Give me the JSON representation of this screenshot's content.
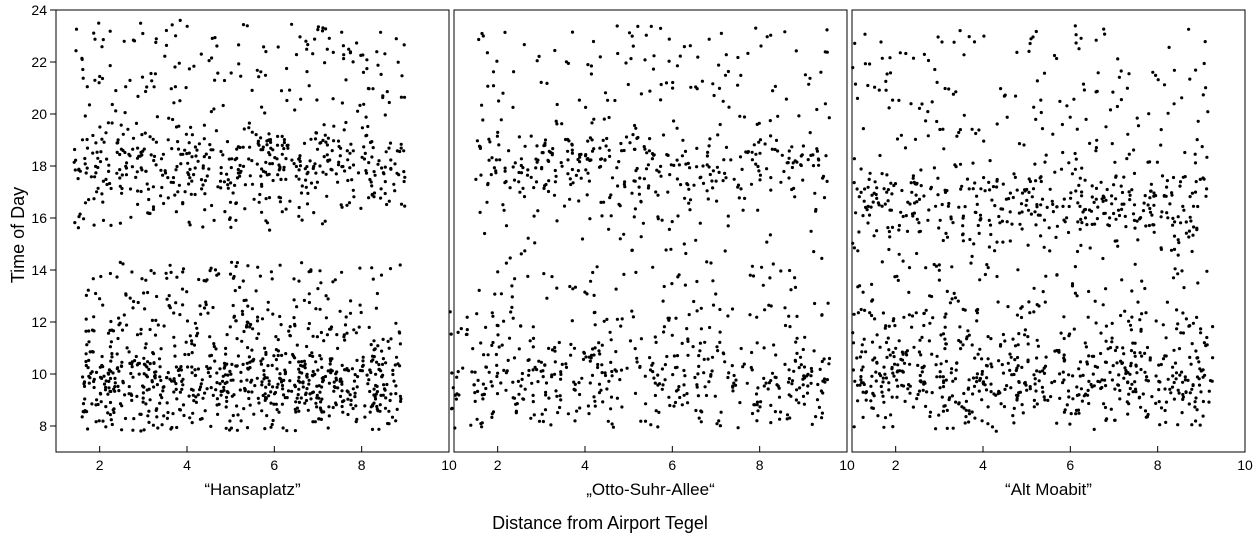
{
  "chart_data": {
    "type": "scatter",
    "xlabel": "Distance from Airport Tegel",
    "ylabel": "Time of Day",
    "grid": false,
    "legend": "none",
    "marker_color": "#000000",
    "x_ticks": [
      "2",
      "4",
      "6",
      "8",
      "10"
    ],
    "x_ticks_edge": [
      "10",
      "10",
      "10"
    ],
    "y_ticks": [
      "8",
      "10",
      "12",
      "14",
      "16",
      "18",
      "20",
      "22",
      "24"
    ],
    "panels": [
      {
        "label": "“Hansaplatz”",
        "xlim": [
          1,
          10
        ],
        "ylim": [
          7,
          24
        ],
        "point_count": 1500,
        "clusters": [
          {
            "x_range": [
              1.6,
              8.9
            ],
            "y_range": [
              7.8,
              14.3
            ],
            "share": 0.58,
            "peak_y": 9.7
          },
          {
            "x_range": [
              1.4,
              9.0
            ],
            "y_range": [
              15.5,
              23.6
            ],
            "share": 0.42,
            "peak_y": 18.0
          }
        ]
      },
      {
        "label": "„Otto-Suhr-Allee“",
        "xlim": [
          1,
          10
        ],
        "ylim": [
          7,
          24
        ],
        "point_count": 1000,
        "clusters": [
          {
            "x_range": [
              0.9,
              9.6
            ],
            "y_range": [
              7.9,
              12.5
            ],
            "share": 0.46,
            "peak_y": 9.8
          },
          {
            "x_range": [
              1.5,
              9.6
            ],
            "y_range": [
              12.5,
              23.4
            ],
            "share": 0.54,
            "peak_y": 18.0
          }
        ]
      },
      {
        "label": "“Alt Moabit”",
        "xlim": [
          1,
          10
        ],
        "ylim": [
          7,
          24
        ],
        "point_count": 1250,
        "clusters": [
          {
            "x_range": [
              1.0,
              9.3
            ],
            "y_range": [
              7.8,
              12.5
            ],
            "share": 0.5,
            "peak_y": 9.8
          },
          {
            "x_range": [
              1.0,
              9.2
            ],
            "y_range": [
              12.5,
              23.5
            ],
            "share": 0.5,
            "peak_y": 16.5
          }
        ]
      }
    ]
  }
}
